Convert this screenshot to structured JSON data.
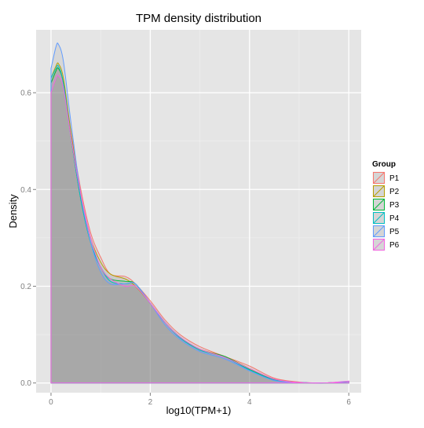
{
  "chart_data": {
    "type": "area",
    "title": "TPM density distribution",
    "xlabel": "log10(TPM+1)",
    "ylabel": "Density",
    "xlim": [
      -0.3,
      6.25
    ],
    "ylim": [
      -0.02,
      0.73
    ],
    "x_ticks": [
      0,
      2,
      4,
      6
    ],
    "y_ticks": [
      0.0,
      0.2,
      0.4,
      0.6
    ],
    "x_tick_labels": [
      "0",
      "2",
      "4",
      "6"
    ],
    "y_tick_labels": [
      "0.0",
      "0.2",
      "0.4",
      "0.6"
    ],
    "grid": true,
    "fill_color": "#7f7f7f",
    "fill_opacity": 0.5,
    "legend": {
      "title": "Group",
      "position": "right"
    },
    "x": [
      0,
      0.1,
      0.15,
      0.25,
      0.4,
      0.6,
      0.8,
      1.0,
      1.2,
      1.5,
      1.7,
      2.0,
      2.3,
      2.6,
      3.0,
      3.5,
      4.0,
      4.5,
      5.0,
      5.5,
      6.0
    ],
    "series": [
      {
        "name": "P1",
        "color": "#f8766d",
        "values": [
          0.62,
          0.645,
          0.65,
          0.62,
          0.52,
          0.4,
          0.31,
          0.26,
          0.225,
          0.22,
          0.205,
          0.17,
          0.13,
          0.1,
          0.075,
          0.055,
          0.035,
          0.01,
          0.002,
          0.0,
          0.003
        ]
      },
      {
        "name": "P2",
        "color": "#b79f00",
        "values": [
          0.63,
          0.655,
          0.66,
          0.63,
          0.52,
          0.39,
          0.3,
          0.25,
          0.225,
          0.215,
          0.2,
          0.165,
          0.125,
          0.095,
          0.07,
          0.055,
          0.03,
          0.008,
          0.001,
          0.0,
          0.003
        ]
      },
      {
        "name": "P3",
        "color": "#00ba38",
        "values": [
          0.62,
          0.645,
          0.65,
          0.62,
          0.51,
          0.38,
          0.29,
          0.24,
          0.215,
          0.21,
          0.205,
          0.165,
          0.125,
          0.095,
          0.068,
          0.055,
          0.028,
          0.007,
          0.001,
          0.0,
          0.003
        ]
      },
      {
        "name": "P4",
        "color": "#00bfc4",
        "values": [
          0.63,
          0.65,
          0.655,
          0.62,
          0.51,
          0.38,
          0.29,
          0.24,
          0.21,
          0.205,
          0.205,
          0.165,
          0.125,
          0.093,
          0.068,
          0.053,
          0.027,
          0.006,
          0.001,
          0.0,
          0.003
        ]
      },
      {
        "name": "P5",
        "color": "#619cff",
        "values": [
          0.65,
          0.695,
          0.7,
          0.665,
          0.54,
          0.39,
          0.29,
          0.23,
          0.205,
          0.205,
          0.205,
          0.165,
          0.12,
          0.09,
          0.065,
          0.05,
          0.025,
          0.005,
          0.001,
          0.0,
          0.003
        ]
      },
      {
        "name": "P6",
        "color": "#f564e3",
        "values": [
          0.6,
          0.63,
          0.635,
          0.61,
          0.51,
          0.39,
          0.3,
          0.24,
          0.215,
          0.2,
          0.2,
          0.165,
          0.125,
          0.095,
          0.07,
          0.053,
          0.03,
          0.008,
          0.001,
          0.0,
          0.004
        ]
      }
    ]
  }
}
